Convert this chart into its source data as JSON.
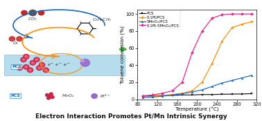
{
  "title": "Electron Interaction Promotes Pt/Mn Intrinsic Synergy",
  "xlabel": "Temperature (°C)",
  "ylabel": "Toluene conversion (%)",
  "xlim": [
    80,
    320
  ],
  "ylim": [
    0,
    105
  ],
  "xticks": [
    80,
    120,
    160,
    200,
    240,
    280,
    320
  ],
  "yticks": [
    0,
    20,
    40,
    60,
    80,
    100
  ],
  "series": [
    {
      "label": "PCS",
      "color": "#111111",
      "marker": "s",
      "x": [
        90,
        110,
        130,
        150,
        170,
        190,
        210,
        230,
        250,
        270,
        290,
        310
      ],
      "y": [
        3.5,
        4.0,
        4.5,
        4.5,
        5.0,
        5.0,
        5.5,
        5.5,
        5.8,
        6.0,
        6.2,
        6.5
      ]
    },
    {
      "label": "0.1Pt/PCS",
      "color": "#FF8C00",
      "marker": "o",
      "x": [
        90,
        110,
        130,
        150,
        170,
        190,
        210,
        230,
        250,
        270,
        290,
        310
      ],
      "y": [
        3.0,
        3.5,
        4.5,
        5.5,
        7.0,
        10,
        20,
        42,
        68,
        84,
        88,
        91
      ]
    },
    {
      "label": "5MnOₓ/PCS",
      "color": "#1565C0",
      "marker": "^",
      "x": [
        90,
        110,
        130,
        150,
        170,
        190,
        210,
        230,
        250,
        270,
        290,
        310
      ],
      "y": [
        2.0,
        2.5,
        3.5,
        5.0,
        6.5,
        8.5,
        11,
        15,
        19,
        22,
        25,
        28
      ]
    },
    {
      "label": "0.1Pt-5MnOₓ/PCS",
      "color": "#E91E8C",
      "marker": "D",
      "x": [
        90,
        110,
        130,
        150,
        170,
        190,
        210,
        230,
        250,
        270,
        290,
        310
      ],
      "y": [
        4.0,
        5.0,
        7.0,
        10,
        20,
        55,
        80,
        95,
        99,
        100,
        100,
        100
      ]
    }
  ],
  "fig_bg": "#ffffff",
  "chart_bg": "#ffffff",
  "left_bg": "#ffffff",
  "slab_color": "#a8d8e8",
  "slab_edge": "#7ab8cc",
  "mnox_color": "#cc2244",
  "pt_color": "#9966cc",
  "co2_color": "#555555",
  "arrow_blue": "#1565C0",
  "arrow_orange": "#FF8C00",
  "arrow_green": "#4CAF50",
  "title_fontsize": 6.5,
  "axis_fontsize": 5.2,
  "tick_fontsize": 4.8,
  "legend_fontsize": 4.0
}
